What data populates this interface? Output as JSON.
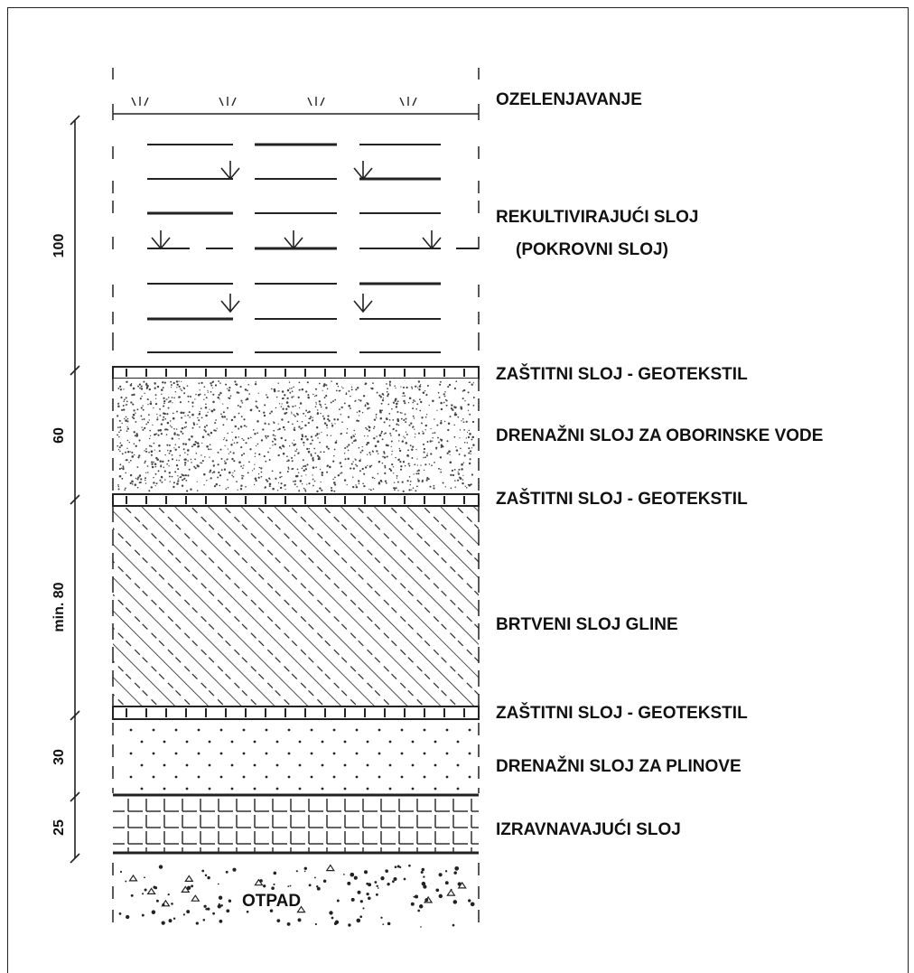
{
  "layers": {
    "ozelenjavanje": "OZELENJAVANJE",
    "rekultivirajuci_line1": "REKULTIVIRAJUĆI SLOJ",
    "rekultivirajuci_line2": "(POKROVNI SLOJ)",
    "geotekstil_1": "ZAŠTITNI SLOJ - GEOTEKSTIL",
    "drenazni_oborinske": "DRENAŽNI SLOJ ZA OBORINSKE VODE",
    "geotekstil_2": "ZAŠTITNI SLOJ - GEOTEKSTIL",
    "brtveni": "BRTVENI SLOJ GLINE",
    "geotekstil_3": "ZAŠTITNI SLOJ - GEOTEKSTIL",
    "drenazni_plinove": "DRENAŽNI SLOJ ZA PLINOVE",
    "izravnavajuci": "IZRAVNAVAJUĆI SLOJ",
    "otpad": "OTPAD"
  },
  "dimensions": {
    "d100": "100",
    "d60": "60",
    "dmin80": "min. 80",
    "d30": "30",
    "d25": "25"
  }
}
